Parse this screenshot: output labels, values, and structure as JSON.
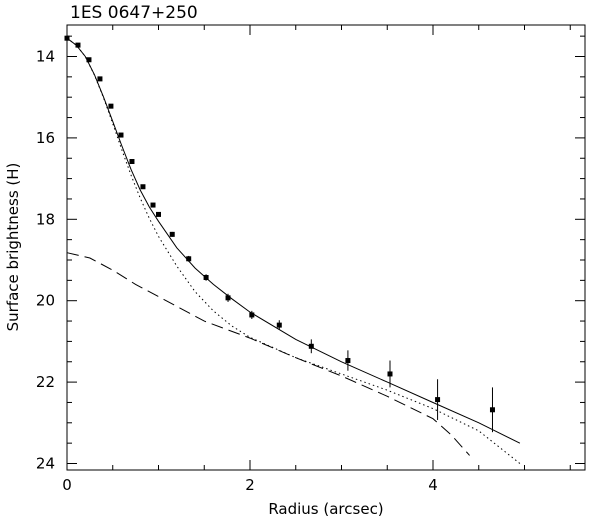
{
  "chart_data": {
    "type": "scatter",
    "title": "1ES 0647+250",
    "xlabel": "Radius (arcsec)",
    "ylabel": "Surface brightness (H)",
    "xlim": [
      0,
      5.75
    ],
    "ylim": [
      24.2,
      13.2
    ],
    "y_inverted": true,
    "grid": false,
    "x_ticks": [
      0,
      2,
      4
    ],
    "y_ticks": [
      14,
      16,
      18,
      20,
      22,
      24
    ],
    "series": [
      {
        "kind": "points",
        "x": [
          0.0,
          0.12,
          0.24,
          0.36,
          0.48,
          0.59,
          0.71,
          0.83,
          0.94,
          1.0,
          1.15,
          1.33,
          1.52,
          1.76,
          2.02,
          2.32,
          2.67,
          3.07,
          3.53,
          4.05,
          4.65
        ],
        "y": [
          13.55,
          13.72,
          14.08,
          14.55,
          15.22,
          15.93,
          16.58,
          17.2,
          17.65,
          17.88,
          18.37,
          18.97,
          19.43,
          19.93,
          20.35,
          20.6,
          21.12,
          21.47,
          21.8,
          22.43,
          22.68
        ],
        "yerr": [
          0.02,
          0.02,
          0.02,
          0.03,
          0.03,
          0.03,
          0.04,
          0.04,
          0.05,
          0.05,
          0.06,
          0.07,
          0.08,
          0.1,
          0.1,
          0.12,
          0.17,
          0.25,
          0.33,
          0.5,
          0.55
        ]
      },
      {
        "kind": "solid-line",
        "x": [
          0,
          0.1,
          0.2,
          0.3,
          0.4,
          0.5,
          0.6,
          0.7,
          0.8,
          0.9,
          1.0,
          1.2,
          1.4,
          1.6,
          1.8,
          2.0,
          2.5,
          3.0,
          3.5,
          4.0,
          4.5,
          4.95
        ],
        "y": [
          13.55,
          13.72,
          14.0,
          14.45,
          15.0,
          15.6,
          16.2,
          16.78,
          17.28,
          17.7,
          18.05,
          18.7,
          19.2,
          19.6,
          19.95,
          20.28,
          20.95,
          21.5,
          22.0,
          22.5,
          23.0,
          23.5
        ]
      },
      {
        "kind": "dotted-line",
        "x": [
          0,
          0.1,
          0.2,
          0.3,
          0.4,
          0.5,
          0.6,
          0.7,
          0.8,
          0.9,
          1.0,
          1.2,
          1.4,
          1.6,
          1.8,
          2.0,
          2.5,
          3.0,
          3.5,
          4.0,
          4.5,
          4.95
        ],
        "y": [
          13.55,
          13.72,
          14.0,
          14.46,
          15.02,
          15.65,
          16.3,
          16.92,
          17.48,
          17.98,
          18.42,
          19.15,
          19.78,
          20.25,
          20.62,
          20.9,
          21.4,
          21.8,
          22.2,
          22.65,
          23.2,
          24.0
        ]
      },
      {
        "kind": "dashed-line",
        "x": [
          0,
          0.25,
          0.5,
          0.75,
          1.0,
          1.5,
          2.0,
          2.5,
          3.0,
          3.5,
          4.0,
          4.2,
          4.4
        ],
        "y": [
          18.82,
          18.95,
          19.25,
          19.6,
          19.9,
          20.5,
          20.92,
          21.4,
          21.85,
          22.35,
          22.9,
          23.3,
          23.8
        ]
      }
    ]
  }
}
